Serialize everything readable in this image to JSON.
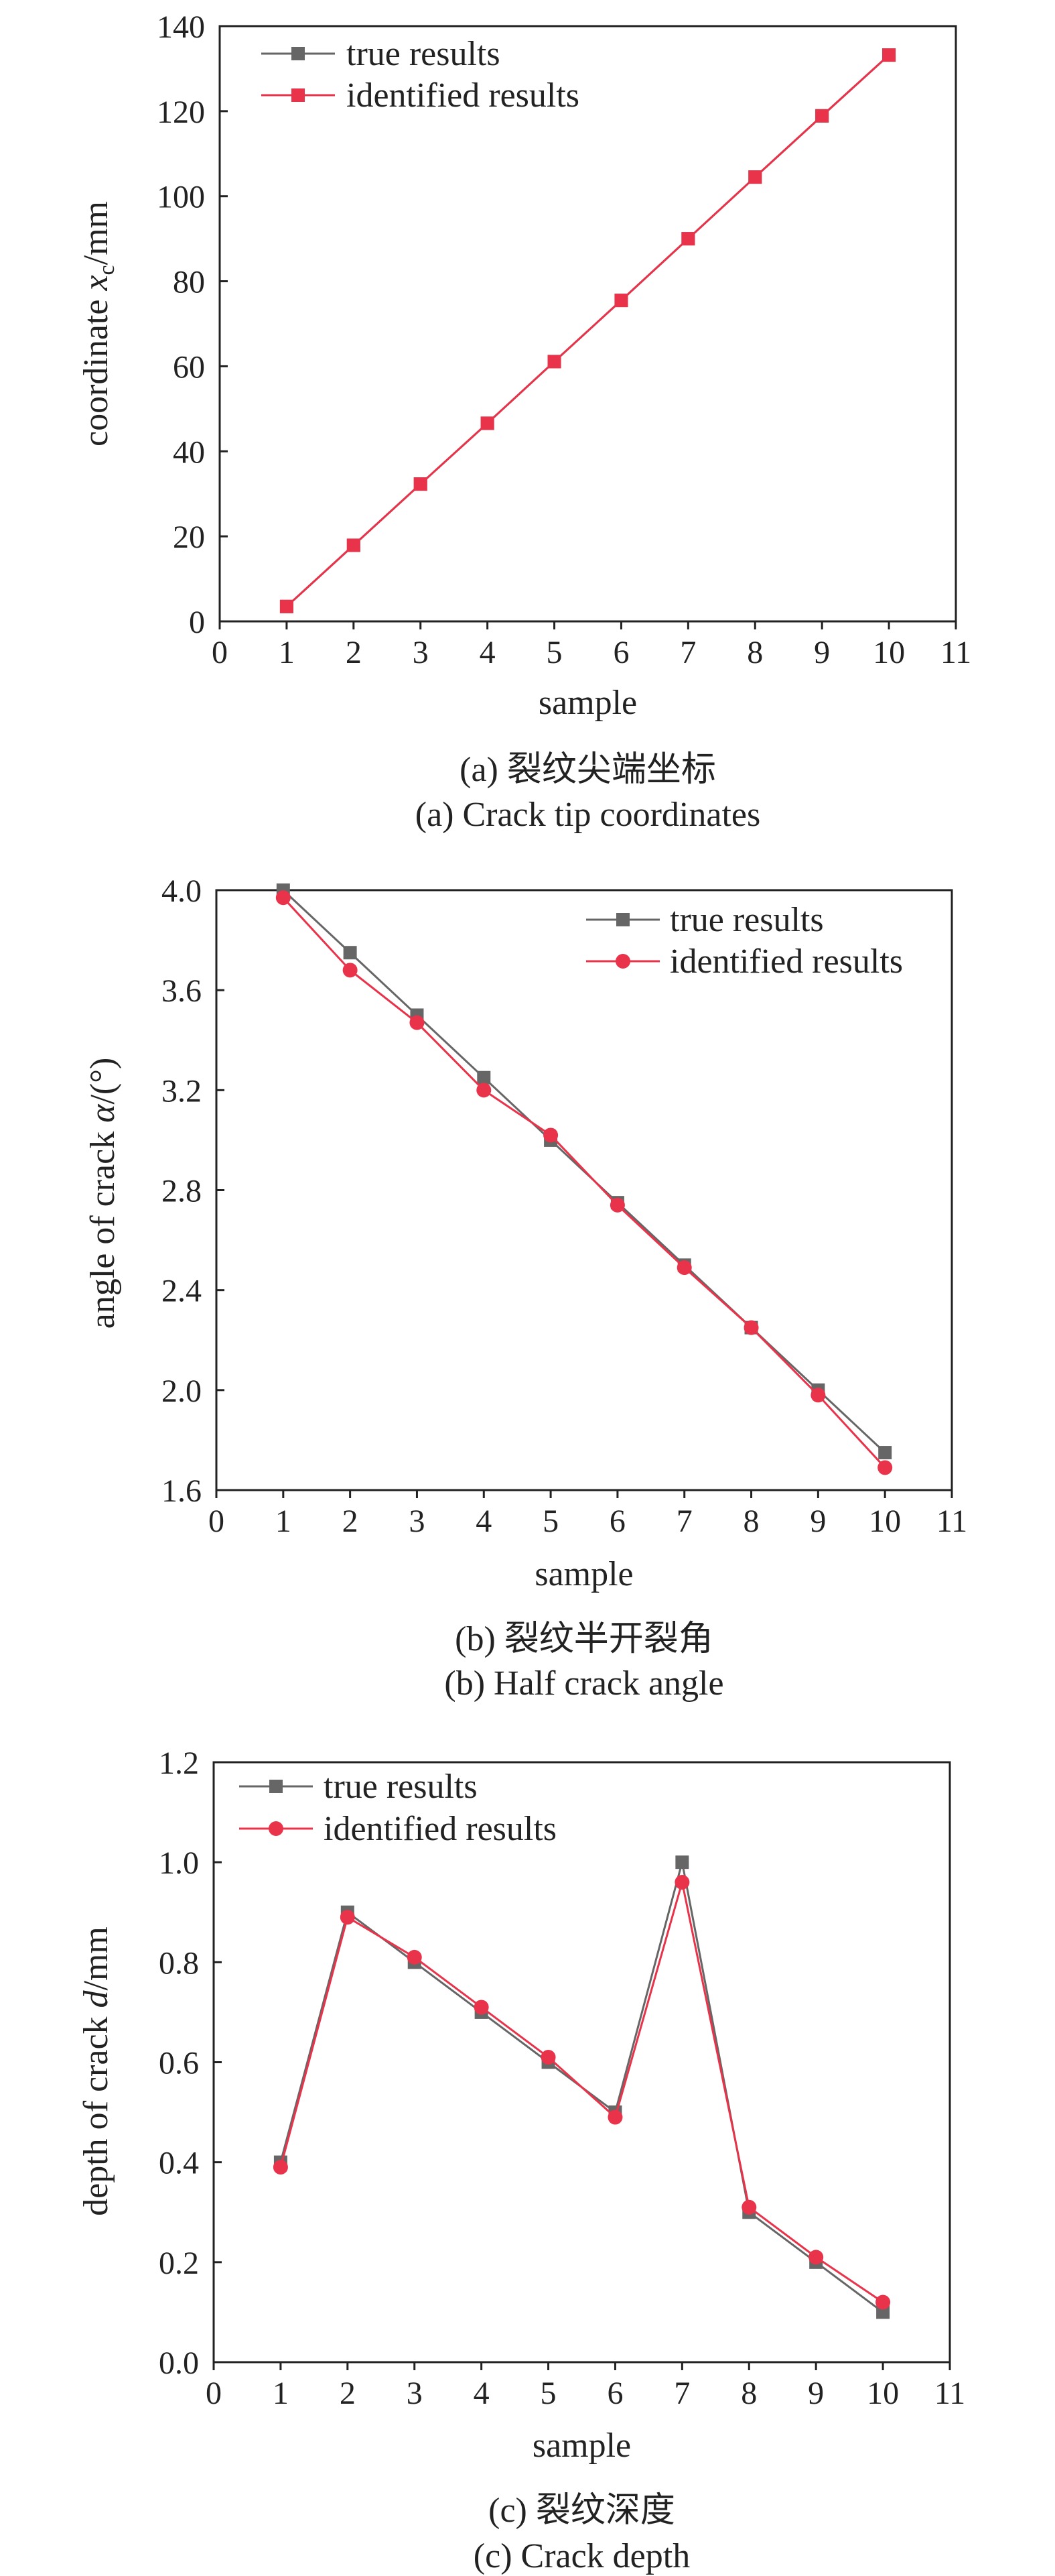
{
  "colors": {
    "true_series": "#666666",
    "identified_series": "#e8334a",
    "axis": "#222222"
  },
  "chart_data": [
    {
      "type": "line",
      "caption_cn": "(a) 裂纹尖端坐标",
      "caption_en": "(a) Crack tip coordinates",
      "xlabel": "sample",
      "ylabel": "coordinate x",
      "ylabel_sub": "c",
      "ylabel_unit": "/mm",
      "xlim": [
        0,
        11
      ],
      "ylim": [
        0,
        140
      ],
      "xticks": [
        0,
        1,
        2,
        3,
        4,
        5,
        6,
        7,
        8,
        9,
        10,
        11
      ],
      "yticks": [
        0,
        20,
        40,
        60,
        80,
        100,
        120,
        140
      ],
      "ytick_labels": [
        "0",
        "20",
        "40",
        "60",
        "80",
        "100",
        "120",
        "140"
      ],
      "grid": false,
      "legend_placement": "top-left",
      "x": [
        1,
        2,
        3,
        4,
        5,
        6,
        7,
        8,
        9,
        10
      ],
      "series": [
        {
          "name": "true results",
          "marker": "square",
          "values": [
            3.5,
            17.9,
            32.3,
            46.6,
            61.1,
            75.5,
            90.0,
            104.5,
            118.9,
            133.2
          ]
        },
        {
          "name": "identified results",
          "marker": "square",
          "values": [
            3.5,
            17.9,
            32.3,
            46.6,
            61.1,
            75.5,
            90.0,
            104.5,
            118.9,
            133.2
          ]
        }
      ]
    },
    {
      "type": "line",
      "caption_cn": "(b) 裂纹半开裂角",
      "caption_en": "(b) Half crack angle",
      "xlabel": "sample",
      "ylabel": "angle of crack α",
      "ylabel_sub": "",
      "ylabel_unit": "/(°)",
      "xlim": [
        0,
        11
      ],
      "ylim": [
        1.6,
        4.0
      ],
      "xticks": [
        0,
        1,
        2,
        3,
        4,
        5,
        6,
        7,
        8,
        9,
        10,
        11
      ],
      "yticks": [
        1.6,
        2.0,
        2.4,
        2.8,
        3.2,
        3.6,
        4.0
      ],
      "ytick_labels": [
        "1.6",
        "2.0",
        "2.4",
        "2.8",
        "3.2",
        "3.6",
        "4.0"
      ],
      "grid": false,
      "legend_placement": "top-right",
      "x": [
        1,
        2,
        3,
        4,
        5,
        6,
        7,
        8,
        9,
        10
      ],
      "series": [
        {
          "name": "true results",
          "marker": "square",
          "values": [
            4.0,
            3.75,
            3.5,
            3.25,
            3.0,
            2.75,
            2.5,
            2.25,
            2.0,
            1.75
          ]
        },
        {
          "name": "identified results",
          "marker": "circle",
          "values": [
            3.97,
            3.68,
            3.47,
            3.2,
            3.02,
            2.74,
            2.49,
            2.25,
            1.98,
            1.69
          ]
        }
      ]
    },
    {
      "type": "line",
      "caption_cn": "(c) 裂纹深度",
      "caption_en": "(c) Crack depth",
      "xlabel": "sample",
      "ylabel": "depth of crack d",
      "ylabel_sub": "",
      "ylabel_unit": "/mm",
      "xlim": [
        0,
        11
      ],
      "ylim": [
        0,
        1.2
      ],
      "xticks": [
        0,
        1,
        2,
        3,
        4,
        5,
        6,
        7,
        8,
        9,
        10,
        11
      ],
      "yticks": [
        0,
        0.2,
        0.4,
        0.6,
        0.8,
        1.0,
        1.2
      ],
      "ytick_labels": [
        "0.0",
        "0.2",
        "0.4",
        "0.6",
        "0.8",
        "1.0",
        "1.2"
      ],
      "grid": false,
      "legend_placement": "top-left",
      "x": [
        1,
        2,
        3,
        4,
        5,
        6,
        7,
        8,
        9,
        10
      ],
      "series": [
        {
          "name": "true results",
          "marker": "square",
          "values": [
            0.4,
            0.9,
            0.8,
            0.7,
            0.6,
            0.5,
            1.0,
            0.3,
            0.2,
            0.1
          ]
        },
        {
          "name": "identified results",
          "marker": "circle",
          "values": [
            0.39,
            0.89,
            0.81,
            0.71,
            0.61,
            0.49,
            0.96,
            0.31,
            0.21,
            0.12
          ]
        }
      ]
    }
  ]
}
